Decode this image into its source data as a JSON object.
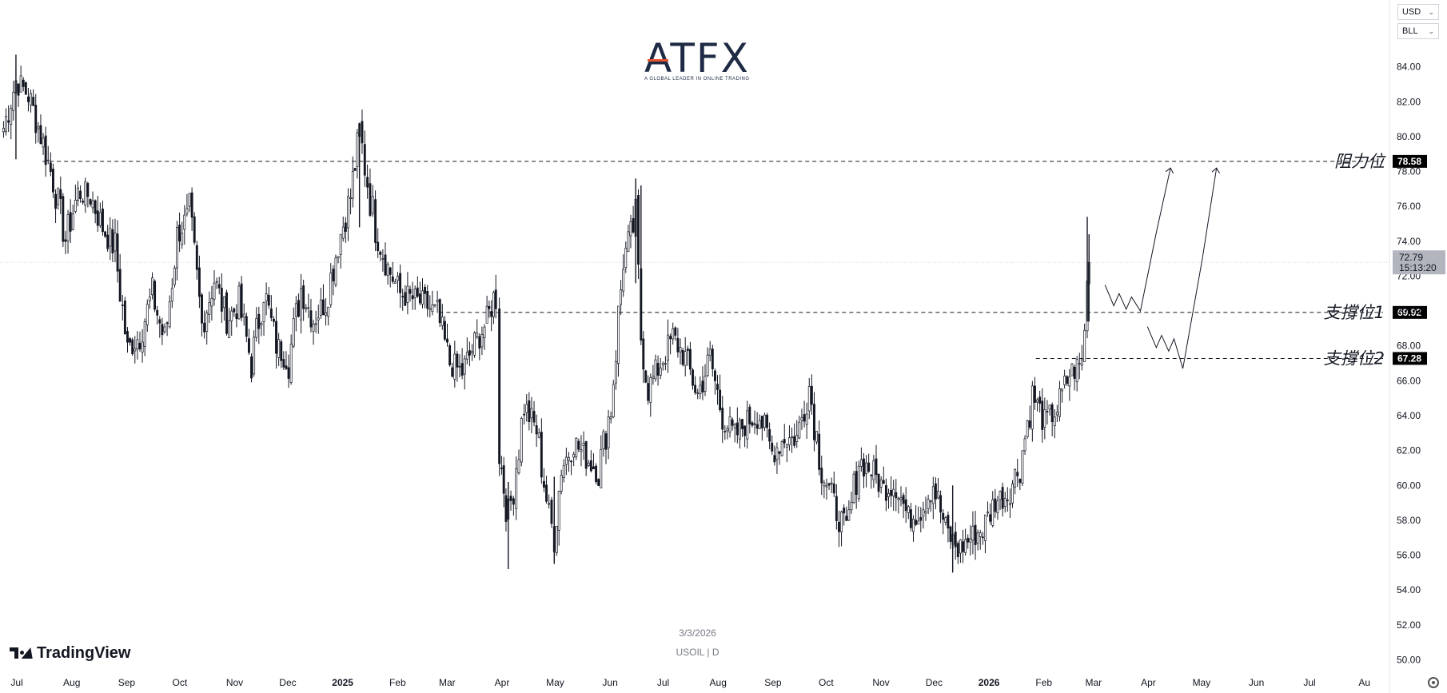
{
  "header": {
    "currency": "USD",
    "unit": "BLL"
  },
  "logo": {
    "brand": "ATFX",
    "tagline": "A GLOBAL LEADER IN ONLINE TRADING"
  },
  "footer": {
    "date": "3/3/2026",
    "symbol": "USOIL",
    "separator": "|",
    "interval": "D",
    "watermark": "TradingView"
  },
  "current_price": {
    "value": "72.79",
    "countdown": "15:13:20"
  },
  "colors": {
    "up": "#131722",
    "down": "#131722",
    "tag_bg": "#000000",
    "price_bg": "#b2b5be",
    "logo_accent": "#e8542c"
  },
  "chart_data": {
    "type": "candlestick",
    "ylim": [
      49.5,
      86.5
    ],
    "y_ticks": [
      "50.00",
      "52.00",
      "54.00",
      "56.00",
      "58.00",
      "60.00",
      "62.00",
      "64.00",
      "66.00",
      "68.00",
      "70.00",
      "72.00",
      "74.00",
      "76.00",
      "78.00",
      "80.00",
      "82.00",
      "84.00"
    ],
    "x_ticks": [
      "Jul",
      "Aug",
      "Sep",
      "Oct",
      "Nov",
      "Dec",
      "2025",
      "Feb",
      "Mar",
      "Apr",
      "May",
      "Jun",
      "Jul",
      "Aug",
      "Sep",
      "Oct",
      "Nov",
      "Dec",
      "2026",
      "Feb",
      "Mar",
      "Apr",
      "May",
      "Jun",
      "Jul",
      "Au"
    ],
    "levels": [
      {
        "label": "阻力位",
        "value": 78.58,
        "tag": "78.58",
        "start": "2024-07-20"
      },
      {
        "label": "支撐位1",
        "value": 69.92,
        "tag": "69.92",
        "start": "2025-03-01"
      },
      {
        "label": "支撐位2",
        "value": 67.28,
        "tag": "67.28",
        "start": "2026-02-01"
      }
    ],
    "closes": [
      {
        "date": "2024-06-28",
        "value": 80.5
      },
      {
        "date": "2024-07-05",
        "value": 83.2
      },
      {
        "date": "2024-07-12",
        "value": 82.4
      },
      {
        "date": "2024-07-19",
        "value": 80.1
      },
      {
        "date": "2024-07-26",
        "value": 77.5
      },
      {
        "date": "2024-08-02",
        "value": 74.1
      },
      {
        "date": "2024-08-09",
        "value": 76.8
      },
      {
        "date": "2024-08-16",
        "value": 76.6
      },
      {
        "date": "2024-08-23",
        "value": 74.8
      },
      {
        "date": "2024-08-30",
        "value": 73.5
      },
      {
        "date": "2024-09-06",
        "value": 67.8
      },
      {
        "date": "2024-09-13",
        "value": 68.6
      },
      {
        "date": "2024-09-20",
        "value": 71.0
      },
      {
        "date": "2024-09-27",
        "value": 68.2
      },
      {
        "date": "2024-10-04",
        "value": 74.4
      },
      {
        "date": "2024-10-11",
        "value": 75.5
      },
      {
        "date": "2024-10-18",
        "value": 69.2
      },
      {
        "date": "2024-10-25",
        "value": 71.8
      },
      {
        "date": "2024-11-01",
        "value": 69.5
      },
      {
        "date": "2024-11-08",
        "value": 70.4
      },
      {
        "date": "2024-11-15",
        "value": 67.0
      },
      {
        "date": "2024-11-22",
        "value": 71.2
      },
      {
        "date": "2024-11-29",
        "value": 68.0
      },
      {
        "date": "2024-12-06",
        "value": 67.2
      },
      {
        "date": "2024-12-13",
        "value": 71.3
      },
      {
        "date": "2024-12-20",
        "value": 69.5
      },
      {
        "date": "2024-12-27",
        "value": 70.6
      },
      {
        "date": "2025-01-03",
        "value": 73.9
      },
      {
        "date": "2025-01-10",
        "value": 76.6
      },
      {
        "date": "2025-01-15",
        "value": 80.2
      },
      {
        "date": "2025-01-24",
        "value": 74.7
      },
      {
        "date": "2025-01-31",
        "value": 72.5
      },
      {
        "date": "2025-02-07",
        "value": 71.0
      },
      {
        "date": "2025-02-14",
        "value": 70.7
      },
      {
        "date": "2025-02-21",
        "value": 70.4
      },
      {
        "date": "2025-02-28",
        "value": 69.8
      },
      {
        "date": "2025-03-07",
        "value": 67.0
      },
      {
        "date": "2025-03-14",
        "value": 66.5
      },
      {
        "date": "2025-03-21",
        "value": 68.1
      },
      {
        "date": "2025-03-28",
        "value": 69.4
      },
      {
        "date": "2025-04-02",
        "value": 71.2
      },
      {
        "date": "2025-04-04",
        "value": 61.9
      },
      {
        "date": "2025-04-09",
        "value": 58.0
      },
      {
        "date": "2025-04-18",
        "value": 64.5
      },
      {
        "date": "2025-04-25",
        "value": 63.2
      },
      {
        "date": "2025-05-02",
        "value": 58.3
      },
      {
        "date": "2025-05-05",
        "value": 57.1
      },
      {
        "date": "2025-05-09",
        "value": 61.0
      },
      {
        "date": "2025-05-16",
        "value": 62.5
      },
      {
        "date": "2025-05-23",
        "value": 61.6
      },
      {
        "date": "2025-05-30",
        "value": 60.8
      },
      {
        "date": "2025-06-06",
        "value": 64.6
      },
      {
        "date": "2025-06-13",
        "value": 72.9
      },
      {
        "date": "2025-06-20",
        "value": 75.2
      },
      {
        "date": "2025-06-23",
        "value": 68.5
      },
      {
        "date": "2025-06-27",
        "value": 65.5
      },
      {
        "date": "2025-07-04",
        "value": 67.0
      },
      {
        "date": "2025-07-11",
        "value": 68.5
      },
      {
        "date": "2025-07-18",
        "value": 67.3
      },
      {
        "date": "2025-07-25",
        "value": 65.2
      },
      {
        "date": "2025-08-01",
        "value": 67.3
      },
      {
        "date": "2025-08-08",
        "value": 63.9
      },
      {
        "date": "2025-08-15",
        "value": 62.8
      },
      {
        "date": "2025-08-22",
        "value": 63.7
      },
      {
        "date": "2025-08-29",
        "value": 64.0
      },
      {
        "date": "2025-09-05",
        "value": 61.9
      },
      {
        "date": "2025-09-12",
        "value": 62.7
      },
      {
        "date": "2025-09-19",
        "value": 62.7
      },
      {
        "date": "2025-09-26",
        "value": 65.7
      },
      {
        "date": "2025-10-03",
        "value": 60.9
      },
      {
        "date": "2025-10-10",
        "value": 58.9
      },
      {
        "date": "2025-10-17",
        "value": 57.2
      },
      {
        "date": "2025-10-24",
        "value": 61.4
      },
      {
        "date": "2025-10-31",
        "value": 60.9
      },
      {
        "date": "2025-11-07",
        "value": 59.8
      },
      {
        "date": "2025-11-14",
        "value": 60.1
      },
      {
        "date": "2025-11-21",
        "value": 58.1
      },
      {
        "date": "2025-11-28",
        "value": 58.6
      },
      {
        "date": "2025-12-05",
        "value": 60.1
      },
      {
        "date": "2025-12-12",
        "value": 57.5
      },
      {
        "date": "2025-12-19",
        "value": 56.3
      },
      {
        "date": "2025-12-26",
        "value": 57.0
      },
      {
        "date": "2026-01-02",
        "value": 57.5
      },
      {
        "date": "2026-01-09",
        "value": 59.1
      },
      {
        "date": "2026-01-16",
        "value": 59.5
      },
      {
        "date": "2026-01-23",
        "value": 61.2
      },
      {
        "date": "2026-01-30",
        "value": 65.2
      },
      {
        "date": "2026-02-06",
        "value": 63.6
      },
      {
        "date": "2026-02-13",
        "value": 64.4
      },
      {
        "date": "2026-02-20",
        "value": 66.4
      },
      {
        "date": "2026-02-27",
        "value": 67.0
      },
      {
        "date": "2026-03-02",
        "value": 71.5
      },
      {
        "date": "2026-03-03",
        "value": 72.79
      }
    ],
    "projection_paths": [
      [
        {
          "date": "2026-03-12",
          "value": 71.5
        },
        {
          "date": "2026-03-17",
          "value": 70.3
        },
        {
          "date": "2026-03-20",
          "value": 71.0
        },
        {
          "date": "2026-03-24",
          "value": 70.1
        },
        {
          "date": "2026-03-27",
          "value": 70.8
        },
        {
          "date": "2026-04-01",
          "value": 70.0
        },
        {
          "date": "2026-04-10",
          "value": 74.5
        },
        {
          "date": "2026-04-18",
          "value": 78.2
        }
      ],
      [
        {
          "date": "2026-04-05",
          "value": 69.1
        },
        {
          "date": "2026-04-10",
          "value": 67.9
        },
        {
          "date": "2026-04-13",
          "value": 68.6
        },
        {
          "date": "2026-04-17",
          "value": 67.7
        },
        {
          "date": "2026-04-20",
          "value": 68.4
        },
        {
          "date": "2026-04-25",
          "value": 66.7
        },
        {
          "date": "2026-05-06",
          "value": 73.0
        },
        {
          "date": "2026-05-14",
          "value": 78.2
        }
      ]
    ]
  }
}
